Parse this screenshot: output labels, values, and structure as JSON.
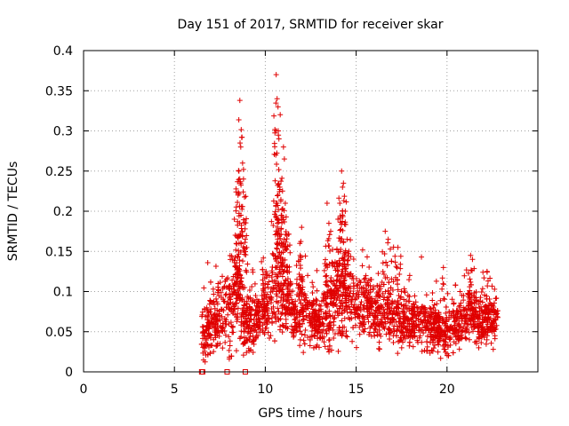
{
  "chart_data": {
    "type": "scatter",
    "title": "Day 151 of 2017, SRMTID for receiver skar",
    "xlabel": "GPS time / hours",
    "ylabel": "SRMTID / TECUs",
    "xlim": [
      0,
      25
    ],
    "ylim": [
      0,
      0.4
    ],
    "xticks": [
      0,
      5,
      10,
      15,
      20
    ],
    "xtick_labels": [
      "0",
      "5",
      "10",
      "15",
      "20"
    ],
    "yticks": [
      0,
      0.05,
      0.1,
      0.15,
      0.2,
      0.25,
      0.3,
      0.35,
      0.4
    ],
    "ytick_labels": [
      "0",
      "0.05",
      "0.1",
      "0.15",
      "0.2",
      "0.25",
      "0.3",
      "0.35",
      "0.4"
    ],
    "grid": true,
    "marker": "+",
    "color": "#e00000",
    "series": [
      {
        "name": "SRMTID",
        "x_range": [
          6.5,
          22.8
        ],
        "zero_points_x": [
          6.5,
          6.55,
          7.9,
          8.9
        ],
        "envelope": [
          {
            "x": 6.5,
            "base": 0.045,
            "spread": 0.035
          },
          {
            "x": 7.0,
            "base": 0.055,
            "spread": 0.04
          },
          {
            "x": 7.6,
            "base": 0.07,
            "spread": 0.05
          },
          {
            "x": 8.2,
            "base": 0.08,
            "spread": 0.06
          },
          {
            "x": 8.5,
            "base": 0.1,
            "spread": 0.07
          },
          {
            "x": 8.9,
            "base": 0.06,
            "spread": 0.05
          },
          {
            "x": 9.3,
            "base": 0.06,
            "spread": 0.04
          },
          {
            "x": 9.8,
            "base": 0.08,
            "spread": 0.04
          },
          {
            "x": 10.3,
            "base": 0.09,
            "spread": 0.05
          },
          {
            "x": 10.8,
            "base": 0.1,
            "spread": 0.06
          },
          {
            "x": 11.5,
            "base": 0.08,
            "spread": 0.04
          },
          {
            "x": 12.3,
            "base": 0.075,
            "spread": 0.04
          },
          {
            "x": 13.0,
            "base": 0.06,
            "spread": 0.03
          },
          {
            "x": 13.5,
            "base": 0.08,
            "spread": 0.05
          },
          {
            "x": 14.2,
            "base": 0.1,
            "spread": 0.06
          },
          {
            "x": 14.8,
            "base": 0.09,
            "spread": 0.05
          },
          {
            "x": 15.5,
            "base": 0.08,
            "spread": 0.04
          },
          {
            "x": 16.5,
            "base": 0.075,
            "spread": 0.04
          },
          {
            "x": 17.5,
            "base": 0.07,
            "spread": 0.04
          },
          {
            "x": 18.5,
            "base": 0.06,
            "spread": 0.035
          },
          {
            "x": 19.5,
            "base": 0.055,
            "spread": 0.035
          },
          {
            "x": 20.0,
            "base": 0.045,
            "spread": 0.03
          },
          {
            "x": 20.5,
            "base": 0.06,
            "spread": 0.035
          },
          {
            "x": 21.2,
            "base": 0.075,
            "spread": 0.04
          },
          {
            "x": 21.8,
            "base": 0.065,
            "spread": 0.035
          },
          {
            "x": 22.8,
            "base": 0.06,
            "spread": 0.03
          }
        ],
        "spikes": [
          {
            "x": 8.6,
            "y": 0.338
          },
          {
            "x": 8.65,
            "y": 0.28
          },
          {
            "x": 8.7,
            "y": 0.292
          },
          {
            "x": 8.75,
            "y": 0.26
          },
          {
            "x": 8.55,
            "y": 0.25
          },
          {
            "x": 8.5,
            "y": 0.22
          },
          {
            "x": 8.8,
            "y": 0.24
          },
          {
            "x": 8.3,
            "y": 0.19
          },
          {
            "x": 8.4,
            "y": 0.16
          },
          {
            "x": 8.9,
            "y": 0.165
          },
          {
            "x": 10.6,
            "y": 0.37
          },
          {
            "x": 10.65,
            "y": 0.34
          },
          {
            "x": 10.7,
            "y": 0.33
          },
          {
            "x": 10.6,
            "y": 0.3
          },
          {
            "x": 10.75,
            "y": 0.29
          },
          {
            "x": 11.0,
            "y": 0.28
          },
          {
            "x": 11.05,
            "y": 0.265
          },
          {
            "x": 10.8,
            "y": 0.23
          },
          {
            "x": 10.7,
            "y": 0.22
          },
          {
            "x": 11.1,
            "y": 0.21
          },
          {
            "x": 10.9,
            "y": 0.19
          },
          {
            "x": 11.2,
            "y": 0.17
          },
          {
            "x": 14.2,
            "y": 0.25
          },
          {
            "x": 14.3,
            "y": 0.235
          },
          {
            "x": 14.25,
            "y": 0.23
          },
          {
            "x": 14.1,
            "y": 0.21
          },
          {
            "x": 14.4,
            "y": 0.2
          },
          {
            "x": 13.4,
            "y": 0.21
          },
          {
            "x": 13.5,
            "y": 0.185
          },
          {
            "x": 13.6,
            "y": 0.175
          },
          {
            "x": 14.0,
            "y": 0.19
          },
          {
            "x": 14.5,
            "y": 0.165
          },
          {
            "x": 12.0,
            "y": 0.18
          },
          {
            "x": 11.9,
            "y": 0.16
          },
          {
            "x": 16.6,
            "y": 0.175
          },
          {
            "x": 17.3,
            "y": 0.155
          },
          {
            "x": 21.3,
            "y": 0.145
          },
          {
            "x": 21.4,
            "y": 0.14
          },
          {
            "x": 19.8,
            "y": 0.13
          },
          {
            "x": 22.2,
            "y": 0.125
          }
        ]
      }
    ]
  }
}
